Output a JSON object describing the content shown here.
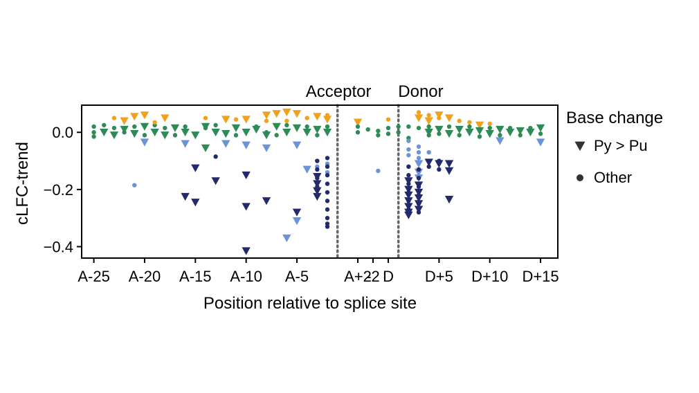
{
  "chart_data": {
    "type": "scatter",
    "xlabel": "Position relative to splice site",
    "ylabel": "cLFC-trend",
    "ylim": [
      -0.44,
      0.095
    ],
    "yticks": [
      0.0,
      -0.2,
      -0.4
    ],
    "ytick_labels": [
      "0.0",
      "−0.2",
      "−0.4"
    ],
    "xticks": [
      {
        "x": -25,
        "label": "A-25"
      },
      {
        "x": -20,
        "label": "A-20"
      },
      {
        "x": -15,
        "label": "A-15"
      },
      {
        "x": -10,
        "label": "A-10"
      },
      {
        "x": -5,
        "label": "A-5"
      },
      {
        "x": 1,
        "label": "A+2"
      },
      {
        "x": 2.5,
        "label": "-2"
      },
      {
        "x": 4,
        "label": "D"
      },
      {
        "x": 9,
        "label": "D+5"
      },
      {
        "x": 14,
        "label": "D+10"
      },
      {
        "x": 19,
        "label": "D+15"
      }
    ],
    "region_labels": [
      {
        "text": "Acceptor",
        "x": -0.9
      },
      {
        "text": "Donor",
        "x": 7.2
      }
    ],
    "dotted_lines_x": [
      -1,
      5
    ],
    "legend": {
      "title": "Base change",
      "placement": "right",
      "entries": [
        {
          "label": "Py > Pu",
          "marker": "triangle-down"
        },
        {
          "label": "Other",
          "marker": "circle"
        }
      ]
    },
    "colors": {
      "green": "#2e8b57",
      "orange": "#f0a21f",
      "light_blue": "#6b93d6",
      "dark_navy": "#222a6b",
      "dotted_line": "#666666",
      "axes": "#000000"
    },
    "marker_colors_meaning": "",
    "series": [
      {
        "marker": "triangle-down",
        "color": "dark_navy",
        "points": [
          [
            -15,
            -0.125
          ],
          [
            -16,
            -0.225
          ],
          [
            -15,
            -0.245
          ],
          [
            -13,
            -0.17
          ],
          [
            -10,
            -0.15
          ],
          [
            -10,
            -0.26
          ],
          [
            -8,
            -0.24
          ],
          [
            -10,
            -0.415
          ],
          [
            -5,
            -0.28
          ],
          [
            -3,
            -0.18
          ],
          [
            -3,
            -0.205
          ],
          [
            -3,
            -0.225
          ],
          [
            -3,
            -0.155
          ],
          [
            6,
            -0.17
          ],
          [
            6,
            -0.2
          ],
          [
            6,
            -0.22
          ],
          [
            6,
            -0.24
          ],
          [
            6,
            -0.26
          ],
          [
            6,
            -0.28
          ],
          [
            6,
            -0.29
          ],
          [
            7,
            -0.185
          ],
          [
            7,
            -0.21
          ],
          [
            7,
            -0.23
          ],
          [
            7,
            -0.25
          ],
          [
            7,
            -0.27
          ],
          [
            8,
            -0.105
          ],
          [
            9,
            -0.11
          ],
          [
            10,
            -0.11
          ],
          [
            10,
            -0.135
          ],
          [
            10,
            -0.235
          ]
        ]
      },
      {
        "marker": "triangle-down",
        "color": "light_blue",
        "points": [
          [
            -6,
            -0.37
          ],
          [
            -5,
            -0.31
          ],
          [
            -4,
            -0.13
          ],
          [
            -10,
            -0.045
          ],
          [
            -8,
            -0.055
          ],
          [
            -16,
            -0.04
          ],
          [
            -20,
            -0.035
          ],
          [
            -12,
            -0.04
          ],
          [
            -5,
            -0.045
          ],
          [
            7,
            -0.11
          ],
          [
            7,
            -0.14
          ],
          [
            7,
            -0.16
          ],
          [
            15,
            -0.03
          ],
          [
            19,
            -0.035
          ]
        ]
      },
      {
        "marker": "triangle-down",
        "color": "orange",
        "points": [
          [
            -22,
            0.04
          ],
          [
            -21,
            0.055
          ],
          [
            -20,
            0.06
          ],
          [
            -18,
            0.05
          ],
          [
            -12,
            0.045
          ],
          [
            -10,
            0.045
          ],
          [
            -8,
            0.06
          ],
          [
            -7,
            0.065
          ],
          [
            -6,
            0.07
          ],
          [
            -5,
            0.065
          ],
          [
            -3,
            0.055
          ],
          [
            -2,
            0.045
          ],
          [
            1,
            0.035
          ],
          [
            7,
            0.05
          ],
          [
            8,
            0.04
          ],
          [
            9,
            0.06
          ],
          [
            10,
            0.05
          ],
          [
            13,
            0.025
          ]
        ]
      },
      {
        "marker": "triangle-down",
        "color": "green",
        "points": [
          [
            -24,
            0.0
          ],
          [
            -23,
            -0.01
          ],
          [
            -22,
            0.01
          ],
          [
            -21,
            -0.005
          ],
          [
            -20,
            0.02
          ],
          [
            -19,
            0.0
          ],
          [
            -18,
            -0.01
          ],
          [
            -17,
            0.015
          ],
          [
            -16,
            0.0
          ],
          [
            -15,
            -0.01
          ],
          [
            -14,
            0.02
          ],
          [
            -13,
            0.0
          ],
          [
            -12,
            -0.005
          ],
          [
            -11,
            0.015
          ],
          [
            -10,
            0.0
          ],
          [
            -9,
            0.01
          ],
          [
            -8,
            -0.01
          ],
          [
            -7,
            0.02
          ],
          [
            -6,
            0.0
          ],
          [
            -5,
            0.015
          ],
          [
            -4,
            0.0
          ],
          [
            -3,
            0.01
          ],
          [
            -2,
            0.0
          ],
          [
            8,
            0.0
          ],
          [
            9,
            0.01
          ],
          [
            10,
            -0.005
          ],
          [
            11,
            0.01
          ],
          [
            12,
            0.0
          ],
          [
            13,
            0.005
          ],
          [
            14,
            -0.005
          ],
          [
            15,
            0.01
          ],
          [
            16,
            0.0
          ],
          [
            17,
            0.005
          ],
          [
            18,
            0.0
          ],
          [
            19,
            0.015
          ],
          [
            -14,
            -0.055
          ]
        ]
      },
      {
        "marker": "circle",
        "color": "green",
        "points": [
          [
            -25,
            0.02
          ],
          [
            -25,
            0.0
          ],
          [
            -25,
            -0.015
          ],
          [
            -24,
            0.025
          ],
          [
            -23,
            0.015
          ],
          [
            -22,
            0.0
          ],
          [
            -21,
            0.02
          ],
          [
            -20,
            -0.01
          ],
          [
            -19,
            0.025
          ],
          [
            -18,
            0.015
          ],
          [
            -17,
            -0.01
          ],
          [
            -16,
            0.02
          ],
          [
            -14,
            0.015
          ],
          [
            -13,
            0.025
          ],
          [
            -12,
            0.0
          ],
          [
            -11,
            -0.01
          ],
          [
            -9,
            0.02
          ],
          [
            -8,
            0.0
          ],
          [
            -7,
            -0.01
          ],
          [
            -6,
            0.025
          ],
          [
            -4,
            0.02
          ],
          [
            -3,
            -0.01
          ],
          [
            -2,
            0.02
          ],
          [
            1,
            0.02
          ],
          [
            1,
            0.0
          ],
          [
            2,
            0.01
          ],
          [
            3,
            0.005
          ],
          [
            3,
            -0.01
          ],
          [
            4,
            0.015
          ],
          [
            4,
            -0.005
          ],
          [
            5,
            0.02
          ],
          [
            5,
            0.0
          ],
          [
            6,
            0.02
          ],
          [
            7,
            0.015
          ],
          [
            8,
            0.02
          ],
          [
            8,
            -0.01
          ],
          [
            9,
            -0.005
          ],
          [
            10,
            0.02
          ],
          [
            11,
            -0.01
          ],
          [
            12,
            0.02
          ],
          [
            13,
            -0.015
          ],
          [
            14,
            0.015
          ],
          [
            15,
            -0.01
          ],
          [
            16,
            0.015
          ],
          [
            17,
            -0.01
          ],
          [
            18,
            0.015
          ],
          [
            19,
            -0.005
          ],
          [
            6,
            -0.02
          ]
        ]
      },
      {
        "marker": "circle",
        "color": "orange",
        "points": [
          [
            -23,
            0.05
          ],
          [
            -19,
            0.035
          ],
          [
            -14,
            0.05
          ],
          [
            -11,
            0.045
          ],
          [
            -8,
            0.04
          ],
          [
            -6,
            0.04
          ],
          [
            -4,
            0.05
          ],
          [
            -2,
            0.06
          ],
          [
            4,
            0.045
          ],
          [
            7,
            0.07
          ],
          [
            8,
            0.06
          ],
          [
            9,
            0.05
          ],
          [
            11,
            0.04
          ],
          [
            12,
            0.035
          ],
          [
            14,
            0.03
          ]
        ]
      },
      {
        "marker": "circle",
        "color": "light_blue",
        "points": [
          [
            -21,
            -0.185
          ],
          [
            3,
            -0.135
          ],
          [
            6,
            -0.03
          ],
          [
            6,
            -0.06
          ],
          [
            6,
            -0.08
          ],
          [
            7,
            -0.05
          ],
          [
            7,
            -0.07
          ],
          [
            7,
            -0.09
          ],
          [
            8,
            -0.07
          ],
          [
            -3,
            -0.1
          ],
          [
            -3,
            -0.12
          ],
          [
            -2,
            -0.11
          ],
          [
            -2,
            -0.14
          ]
        ]
      },
      {
        "marker": "circle",
        "color": "dark_navy",
        "points": [
          [
            -13,
            -0.085
          ],
          [
            -3,
            -0.1
          ],
          [
            -3,
            -0.13
          ],
          [
            -3,
            -0.16
          ],
          [
            -3,
            -0.19
          ],
          [
            -3,
            -0.22
          ],
          [
            -2,
            -0.09
          ],
          [
            -2,
            -0.12
          ],
          [
            -2,
            -0.15
          ],
          [
            -2,
            -0.18
          ],
          [
            -2,
            -0.21
          ],
          [
            -2,
            -0.24
          ],
          [
            -2,
            -0.27
          ],
          [
            -2,
            -0.3
          ],
          [
            -2,
            -0.32
          ],
          [
            -2,
            -0.33
          ],
          [
            6,
            -0.12
          ],
          [
            6,
            -0.15
          ],
          [
            6,
            -0.18
          ],
          [
            6,
            -0.21
          ],
          [
            6,
            -0.24
          ],
          [
            6,
            -0.27
          ],
          [
            7,
            -0.13
          ],
          [
            7,
            -0.16
          ],
          [
            7,
            -0.19
          ],
          [
            7,
            -0.22
          ],
          [
            7,
            -0.25
          ],
          [
            7,
            -0.28
          ],
          [
            8,
            -0.12
          ],
          [
            9,
            -0.13
          ],
          [
            9,
            -0.1
          ]
        ]
      }
    ]
  }
}
